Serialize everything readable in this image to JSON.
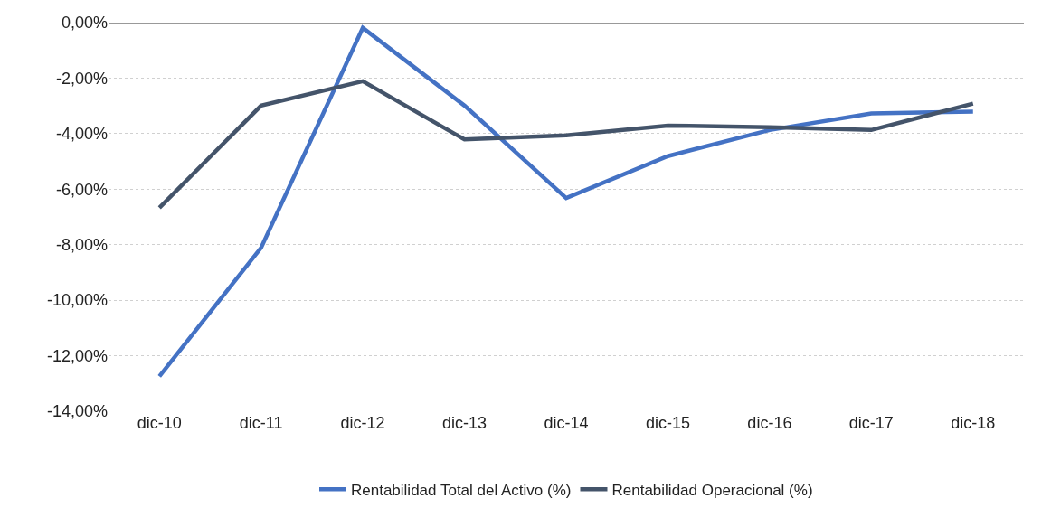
{
  "chart_data": {
    "type": "line",
    "categories": [
      "dic-10",
      "dic-11",
      "dic-12",
      "dic-13",
      "dic-14",
      "dic-15",
      "dic-16",
      "dic-17",
      "dic-18"
    ],
    "series": [
      {
        "name": "Rentabilidad Total del Activo (%)",
        "color": "#4472c4",
        "values": [
          -12.74,
          -8.11,
          -0.19,
          -2.99,
          -6.32,
          -4.81,
          -3.87,
          -3.27,
          -3.21
        ]
      },
      {
        "name": "Rentabilidad Operacional (%)",
        "color": "#44546a",
        "values": [
          -6.67,
          -2.99,
          -2.11,
          -4.21,
          -4.06,
          -3.71,
          -3.77,
          -3.87,
          -2.92
        ]
      }
    ],
    "ylim": [
      -14,
      0
    ],
    "yticks": [
      {
        "value": 0,
        "label": "0,00%"
      },
      {
        "value": -2,
        "label": "-2,00%"
      },
      {
        "value": -4,
        "label": "-4,00%"
      },
      {
        "value": -6,
        "label": "-6,00%"
      },
      {
        "value": -8,
        "label": "-8,00%"
      },
      {
        "value": -10,
        "label": "-10,00%"
      },
      {
        "value": -12,
        "label": "-12,00%"
      },
      {
        "value": -14,
        "label": "-14,00%"
      }
    ],
    "grid": "y",
    "legend": "bottom",
    "marker": "none",
    "line_style": "solid"
  }
}
